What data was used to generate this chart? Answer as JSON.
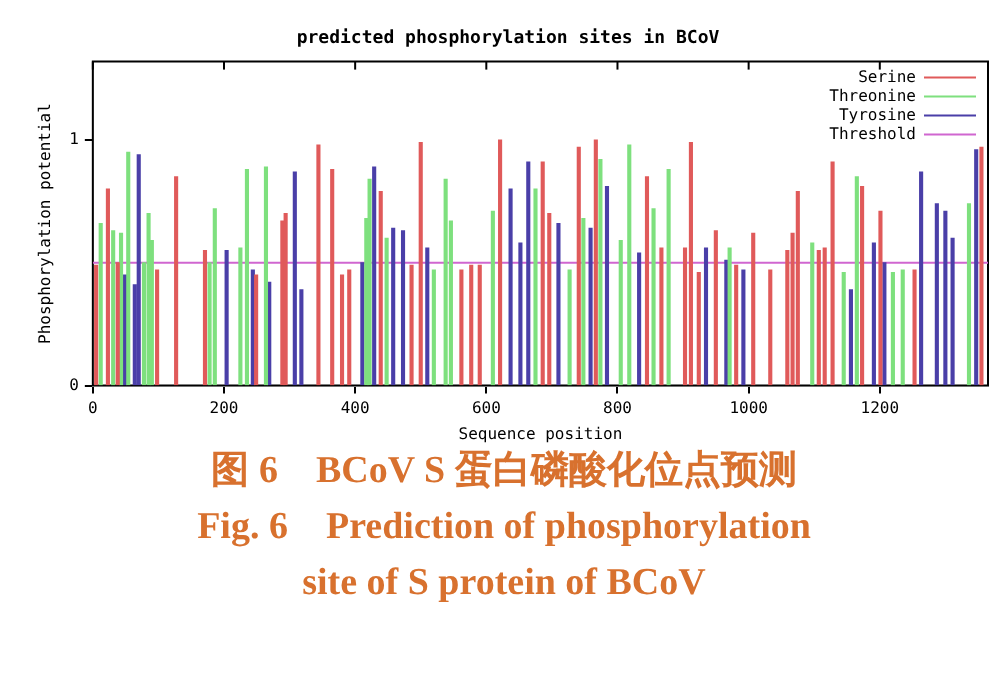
{
  "chart_data": {
    "type": "bar",
    "title": "predicted phosphorylation sites in BCoV",
    "xlabel": "Sequence position",
    "ylabel": "Phosphorylation potential",
    "xlim": [
      0,
      1365
    ],
    "xticks": [
      0,
      200,
      400,
      600,
      800,
      1000,
      1200
    ],
    "ylim": [
      0,
      1.32
    ],
    "yticks": [
      0,
      1
    ],
    "grid": false,
    "legend": "top right",
    "series": [
      {
        "name": "Serine",
        "color": "#e05a5a",
        "x": [
          5,
          23,
          38,
          98,
          127,
          171,
          249,
          289,
          294,
          344,
          365,
          380,
          391,
          439,
          486,
          500,
          562,
          577,
          590,
          621,
          686,
          696,
          741,
          767,
          845,
          867,
          903,
          912,
          924,
          950,
          981,
          1007,
          1033,
          1059,
          1067,
          1075,
          1107,
          1116,
          1128,
          1173,
          1201,
          1253,
          1355
        ],
        "values": [
          0.49,
          0.8,
          0.5,
          0.47,
          0.85,
          0.55,
          0.45,
          0.67,
          0.7,
          0.98,
          0.88,
          0.45,
          0.47,
          0.79,
          0.49,
          0.99,
          0.47,
          0.49,
          0.49,
          1.0,
          0.91,
          0.7,
          0.97,
          1.0,
          0.85,
          0.56,
          0.56,
          0.99,
          0.46,
          0.63,
          0.49,
          0.62,
          0.47,
          0.55,
          0.62,
          0.79,
          0.55,
          0.56,
          0.91,
          0.81,
          0.71,
          0.47,
          0.97
        ]
      },
      {
        "name": "Threonine",
        "color": "#7ee07e",
        "x": [
          12,
          31,
          43,
          54,
          78,
          85,
          90,
          178,
          186,
          225,
          235,
          264,
          417,
          422,
          448,
          520,
          538,
          546,
          610,
          675,
          727,
          748,
          774,
          805,
          818,
          855,
          878,
          971,
          1097,
          1145,
          1165,
          1220,
          1235,
          1336
        ],
        "values": [
          0.66,
          0.63,
          0.62,
          0.95,
          0.5,
          0.7,
          0.59,
          0.5,
          0.72,
          0.56,
          0.88,
          0.89,
          0.68,
          0.84,
          0.6,
          0.47,
          0.84,
          0.67,
          0.71,
          0.8,
          0.47,
          0.68,
          0.92,
          0.59,
          0.98,
          0.72,
          0.88,
          0.56,
          0.58,
          0.46,
          0.85,
          0.46,
          0.47,
          0.74
        ]
      },
      {
        "name": "Tyrosine",
        "color": "#4a3fa8",
        "x": [
          49,
          64,
          70,
          204,
          244,
          269,
          308,
          318,
          411,
          429,
          458,
          473,
          510,
          637,
          652,
          664,
          710,
          759,
          784,
          833,
          935,
          966,
          992,
          1156,
          1191,
          1207,
          1263,
          1287,
          1300,
          1311,
          1347
        ],
        "values": [
          0.45,
          0.41,
          0.94,
          0.55,
          0.47,
          0.42,
          0.87,
          0.39,
          0.5,
          0.89,
          0.64,
          0.63,
          0.56,
          0.8,
          0.58,
          0.91,
          0.66,
          0.64,
          0.81,
          0.54,
          0.56,
          0.51,
          0.47,
          0.39,
          0.58,
          0.5,
          0.87,
          0.74,
          0.71,
          0.6,
          0.96
        ]
      }
    ],
    "ref_lines": [
      {
        "axis": "y",
        "value": 0.5,
        "label": "Threshold",
        "color": "#d066d0"
      }
    ],
    "annotations": [
      "图 6　BCoV S 蛋白磷酸化位点预测",
      "Fig. 6　Prediction of phosphorylation",
      "site of S protein of BCoV"
    ]
  }
}
